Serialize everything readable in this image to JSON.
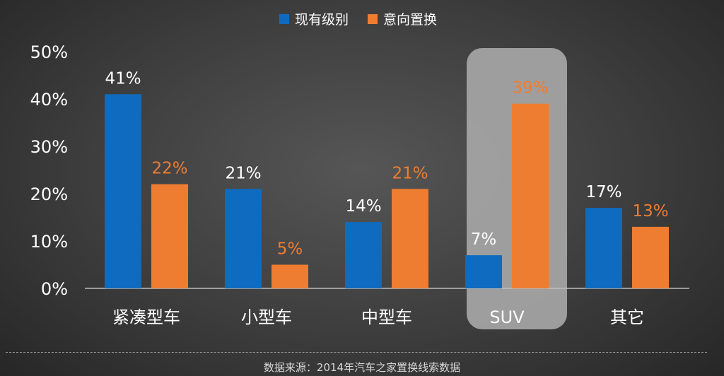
{
  "chart_data": {
    "type": "bar",
    "categories": [
      "紧凑型车",
      "小型车",
      "中型车",
      "SUV",
      "其它"
    ],
    "series": [
      {
        "name": "现有级别",
        "values": [
          41,
          21,
          14,
          7,
          17
        ],
        "labels": [
          "41%",
          "21%",
          "14%",
          "7%",
          "17%"
        ],
        "color": "#0f6bbf"
      },
      {
        "name": "意向置换",
        "values": [
          22,
          5,
          21,
          39,
          13
        ],
        "labels": [
          "22%",
          "5%",
          "21%",
          "39%",
          "13%"
        ],
        "color": "#ee7d31"
      }
    ],
    "y_ticks": [
      "0%",
      "10%",
      "20%",
      "30%",
      "40%",
      "50%"
    ],
    "ylim": [
      0,
      50
    ],
    "highlight_category": "SUV",
    "legend_position": "top-center",
    "grid": false
  },
  "colors": {
    "axis_text": "#ffffff",
    "highlight_box": "#a6a6a6"
  },
  "footer": {
    "source": "数据来源：2014年汽车之家置换线索数据"
  }
}
